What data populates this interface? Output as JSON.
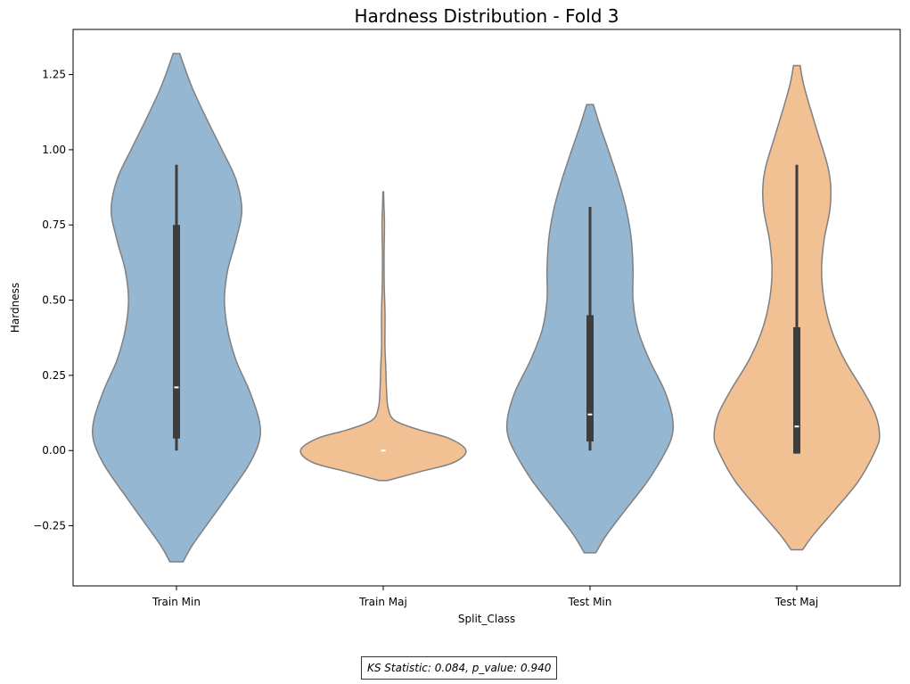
{
  "chart_data": {
    "type": "violin",
    "title": "Hardness Distribution - Fold 3",
    "xlabel": "Split_Class",
    "ylabel": "Hardness",
    "categories": [
      "Train Min",
      "Train Maj",
      "Test Min",
      "Test Maj"
    ],
    "ylim": [
      -0.45,
      1.4
    ],
    "yticks": [
      -0.25,
      0.0,
      0.25,
      0.5,
      0.75,
      1.0,
      1.25
    ],
    "ytick_labels": [
      "−0.25",
      "0.00",
      "0.25",
      "0.50",
      "0.75",
      "1.00",
      "1.25"
    ],
    "grid": false,
    "colors": {
      "min": "#95b7d2",
      "maj": "#f1c093",
      "edge": "#808080",
      "box": "#3d3d3d",
      "median": "#ffffff"
    },
    "violins": [
      {
        "category": "Train Min",
        "color_key": "min",
        "range": [
          -0.37,
          1.32
        ],
        "profile": [
          [
            -0.37,
            0.08
          ],
          [
            -0.32,
            0.18
          ],
          [
            -0.25,
            0.36
          ],
          [
            -0.15,
            0.62
          ],
          [
            -0.05,
            0.87
          ],
          [
            0.03,
            1.0
          ],
          [
            0.1,
            1.0
          ],
          [
            0.2,
            0.88
          ],
          [
            0.3,
            0.72
          ],
          [
            0.4,
            0.62
          ],
          [
            0.5,
            0.58
          ],
          [
            0.6,
            0.62
          ],
          [
            0.7,
            0.72
          ],
          [
            0.8,
            0.79
          ],
          [
            0.9,
            0.72
          ],
          [
            1.0,
            0.55
          ],
          [
            1.1,
            0.37
          ],
          [
            1.2,
            0.2
          ],
          [
            1.28,
            0.09
          ],
          [
            1.32,
            0.04
          ]
        ],
        "box": {
          "q1": 0.04,
          "q3": 0.75,
          "whisker_low": 0.0,
          "whisker_high": 0.95,
          "median": 0.21
        }
      },
      {
        "category": "Train Maj",
        "color_key": "maj",
        "range": [
          -0.1,
          0.86
        ],
        "profile": [
          [
            -0.1,
            0.05
          ],
          [
            -0.07,
            0.45
          ],
          [
            -0.04,
            0.85
          ],
          [
            0.0,
            1.0
          ],
          [
            0.04,
            0.8
          ],
          [
            0.07,
            0.42
          ],
          [
            0.1,
            0.14
          ],
          [
            0.14,
            0.06
          ],
          [
            0.2,
            0.04
          ],
          [
            0.28,
            0.03
          ],
          [
            0.35,
            0.02
          ],
          [
            0.45,
            0.022
          ],
          [
            0.55,
            0.012
          ],
          [
            0.65,
            0.01
          ],
          [
            0.75,
            0.015
          ],
          [
            0.82,
            0.008
          ],
          [
            0.86,
            0.004
          ]
        ],
        "box": {
          "q1": 0.0,
          "q3": 0.0,
          "whisker_low": 0.0,
          "whisker_high": 0.0,
          "median": 0.0
        }
      },
      {
        "category": "Test Min",
        "color_key": "min",
        "range": [
          -0.34,
          1.15
        ],
        "profile": [
          [
            -0.34,
            0.07
          ],
          [
            -0.28,
            0.2
          ],
          [
            -0.2,
            0.42
          ],
          [
            -0.1,
            0.7
          ],
          [
            0.0,
            0.92
          ],
          [
            0.06,
            1.0
          ],
          [
            0.12,
            0.99
          ],
          [
            0.2,
            0.9
          ],
          [
            0.3,
            0.72
          ],
          [
            0.4,
            0.58
          ],
          [
            0.5,
            0.52
          ],
          [
            0.6,
            0.52
          ],
          [
            0.7,
            0.5
          ],
          [
            0.8,
            0.44
          ],
          [
            0.9,
            0.34
          ],
          [
            1.0,
            0.22
          ],
          [
            1.08,
            0.12
          ],
          [
            1.15,
            0.04
          ]
        ],
        "box": {
          "q1": 0.03,
          "q3": 0.45,
          "whisker_low": 0.0,
          "whisker_high": 0.81,
          "median": 0.12
        }
      },
      {
        "category": "Test Maj",
        "color_key": "maj",
        "range": [
          -0.33,
          1.28
        ],
        "profile": [
          [
            -0.33,
            0.07
          ],
          [
            -0.28,
            0.2
          ],
          [
            -0.2,
            0.45
          ],
          [
            -0.1,
            0.75
          ],
          [
            0.0,
            0.95
          ],
          [
            0.05,
            1.0
          ],
          [
            0.12,
            0.95
          ],
          [
            0.2,
            0.8
          ],
          [
            0.3,
            0.58
          ],
          [
            0.4,
            0.42
          ],
          [
            0.5,
            0.33
          ],
          [
            0.6,
            0.3
          ],
          [
            0.7,
            0.33
          ],
          [
            0.8,
            0.4
          ],
          [
            0.88,
            0.41
          ],
          [
            0.95,
            0.37
          ],
          [
            1.05,
            0.26
          ],
          [
            1.15,
            0.15
          ],
          [
            1.22,
            0.08
          ],
          [
            1.28,
            0.04
          ]
        ],
        "box": {
          "q1": -0.01,
          "q3": 0.41,
          "whisker_low": -0.01,
          "whisker_high": 0.95,
          "median": 0.08
        }
      }
    ],
    "annotation": "KS Statistic: 0.084, p_value: 0.940"
  }
}
